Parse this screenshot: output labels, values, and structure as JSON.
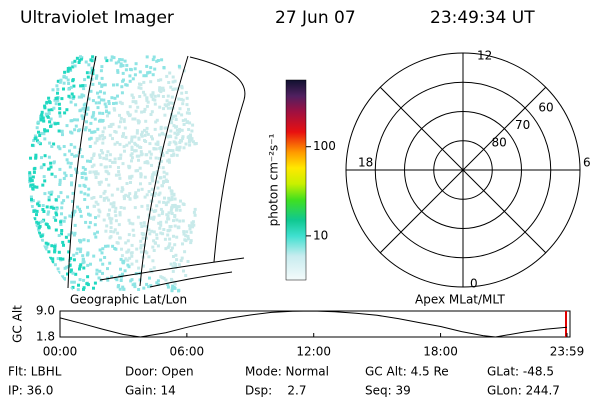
{
  "header": {
    "instrument": "Ultraviolet Imager",
    "date": "27 Jun 07",
    "time": "23:49:34 UT"
  },
  "colorbar": {
    "label": "photon cm⁻²s⁻¹",
    "scale": "log",
    "lim": [
      3.2,
      560
    ],
    "ticks": [
      10,
      100
    ]
  },
  "image_caption": "Geographic Lat/Lon",
  "polar": {
    "caption": "Apex MLat/MLT",
    "rlim": [
      90,
      50
    ],
    "rings": [
      60,
      70,
      80
    ],
    "mlt_labels": {
      "top": "12",
      "left": "18",
      "right": "6",
      "bottom": "0"
    }
  },
  "chart_data": {
    "type": "line",
    "ylabel": "GC Alt",
    "color": "#000000",
    "x": [
      0,
      1,
      2,
      3,
      3.8,
      5,
      6,
      7,
      8,
      9,
      10,
      11,
      12,
      13,
      14,
      15,
      16,
      17,
      18,
      19,
      20,
      20.6,
      22,
      23,
      23.98
    ],
    "values": [
      7.1,
      5.6,
      4.0,
      2.5,
      1.8,
      3.0,
      4.5,
      5.8,
      7.0,
      7.9,
      8.6,
      8.95,
      9.0,
      8.8,
      8.4,
      7.8,
      6.9,
      5.8,
      4.7,
      3.3,
      2.2,
      1.8,
      3.2,
      4.0,
      4.5
    ],
    "xlim": [
      0,
      23.98
    ],
    "ylim": [
      1.8,
      9.0
    ],
    "xticks": [
      {
        "value": 0,
        "label": "00:00"
      },
      {
        "value": 6,
        "label": "06:00"
      },
      {
        "value": 12,
        "label": "12:00"
      },
      {
        "value": 18,
        "label": "18:00"
      },
      {
        "value": 23.98,
        "label": "23:59"
      }
    ],
    "yticks": [
      {
        "value": 1.8,
        "label": "1.8"
      },
      {
        "value": 9.0,
        "label": "9.0"
      }
    ]
  },
  "info": [
    [
      "Flt: LBHL",
      "Door: Open",
      "Mode: Normal",
      "GC Alt: 4.5 Re",
      "GLat: -48.5"
    ],
    [
      "IP: 36.0",
      "Gain: 14",
      "Dsp:    2.7",
      "Seq: 39",
      "GLon: 244.7"
    ]
  ]
}
